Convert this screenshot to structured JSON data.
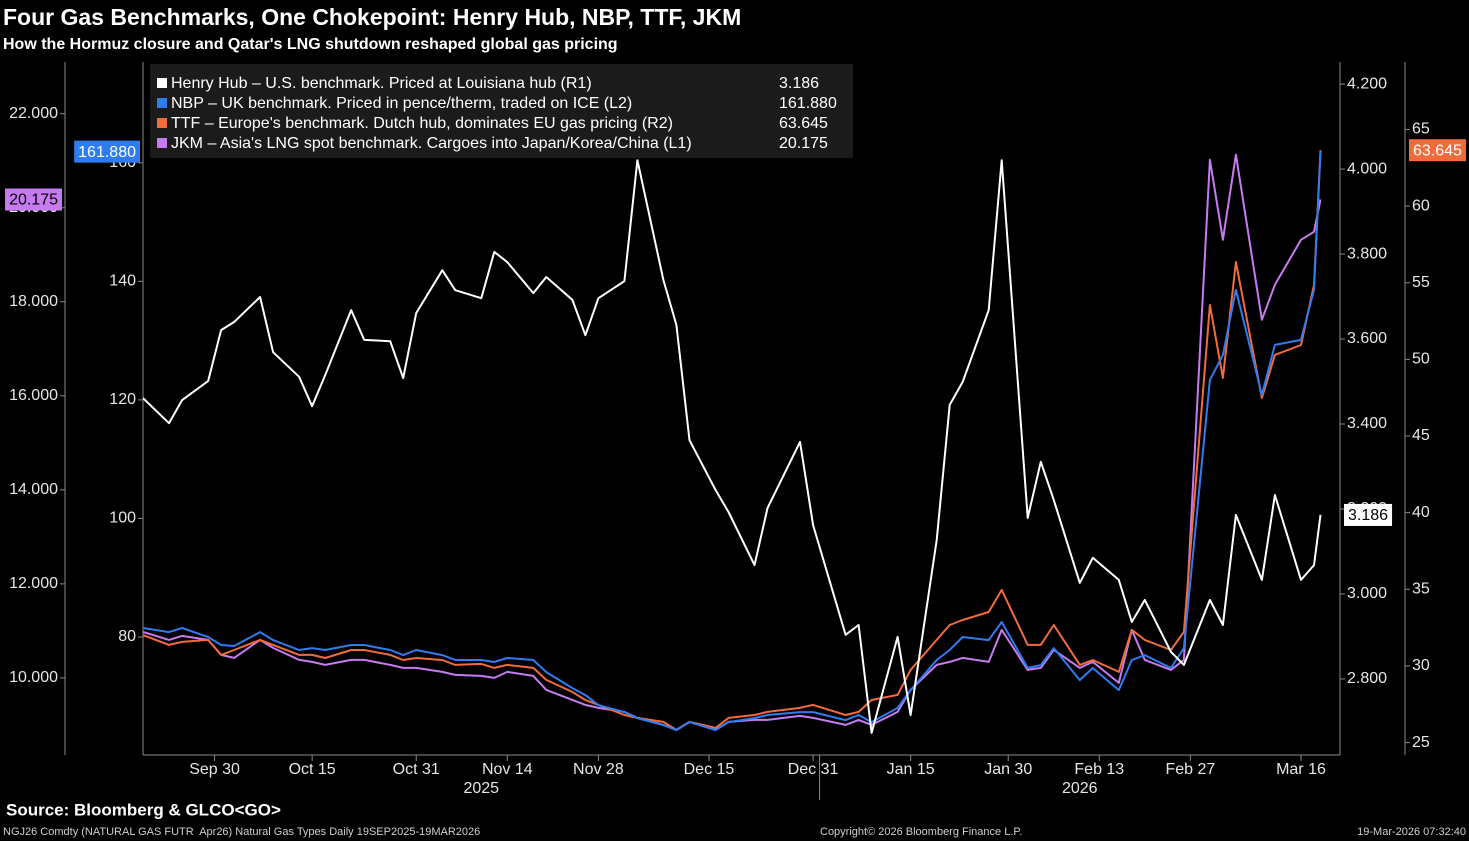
{
  "chart_data": {
    "type": "line",
    "title": "Four Gas Benchmarks, One Chokepoint: Henry Hub, NBP, TTF, JKM",
    "subtitle": "How the Hormuz closure and Qatar's LNG shutdown reshaped global gas pricing",
    "source": "Source: Bloomberg & GLCO<GO>",
    "footer_left": "NGJ26 Comdty (NATURAL GAS FUTR  Apr26) Natural Gas Types Daily 19SEP2025-19MAR2026",
    "footer_center": "Copyright© 2026 Bloomberg Finance L.P.",
    "footer_right": "19-Mar-2026 07:32:40",
    "legend": "upper left",
    "grid": false,
    "years": [
      "2025",
      "2026"
    ],
    "x": [
      "2025-09-19",
      "2025-09-23",
      "2025-09-25",
      "2025-09-29",
      "2025-10-01",
      "2025-10-03",
      "2025-10-07",
      "2025-10-09",
      "2025-10-13",
      "2025-10-15",
      "2025-10-17",
      "2025-10-21",
      "2025-10-23",
      "2025-10-27",
      "2025-10-29",
      "2025-10-31",
      "2025-11-04",
      "2025-11-06",
      "2025-11-10",
      "2025-11-12",
      "2025-11-14",
      "2025-11-18",
      "2025-11-20",
      "2025-11-24",
      "2025-11-26",
      "2025-11-28",
      "2025-12-02",
      "2025-12-04",
      "2025-12-08",
      "2025-12-10",
      "2025-12-12",
      "2025-12-16",
      "2025-12-18",
      "2025-12-22",
      "2025-12-24",
      "2025-12-29",
      "2025-12-31",
      "2026-01-05",
      "2026-01-07",
      "2026-01-09",
      "2026-01-13",
      "2026-01-15",
      "2026-01-19",
      "2026-01-21",
      "2026-01-23",
      "2026-01-27",
      "2026-01-29",
      "2026-02-02",
      "2026-02-04",
      "2026-02-06",
      "2026-02-10",
      "2026-02-12",
      "2026-02-16",
      "2026-02-18",
      "2026-02-20",
      "2026-02-24",
      "2026-02-26",
      "2026-03-02",
      "2026-03-04",
      "2026-03-06",
      "2026-03-10",
      "2026-03-12",
      "2026-03-16",
      "2026-03-18",
      "2026-03-19"
    ],
    "xlim": [
      "2025-09-19",
      "2026-03-22"
    ],
    "xticks": [
      {
        "value": "2025-09-30",
        "label": "Sep 30"
      },
      {
        "value": "2025-10-15",
        "label": "Oct 15"
      },
      {
        "value": "2025-10-31",
        "label": "Oct 31"
      },
      {
        "value": "2025-11-14",
        "label": "Nov 14"
      },
      {
        "value": "2025-11-28",
        "label": "Nov 28"
      },
      {
        "value": "2025-12-15",
        "label": "Dec 15"
      },
      {
        "value": "2025-12-31",
        "label": "Dec 31"
      },
      {
        "value": "2026-01-15",
        "label": "Jan 15"
      },
      {
        "value": "2026-01-30",
        "label": "Jan 30"
      },
      {
        "value": "2026-02-13",
        "label": "Feb 13"
      },
      {
        "value": "2026-02-27",
        "label": "Feb 27"
      },
      {
        "value": "2026-03-16",
        "label": "Mar 16"
      }
    ],
    "ylim": [
      8.36,
      23.1
    ],
    "yticks": [
      {
        "value": 10,
        "label": "10.000"
      },
      {
        "value": 12,
        "label": "12.000"
      },
      {
        "value": 14,
        "label": "14.000"
      },
      {
        "value": 16,
        "label": "16.000"
      },
      {
        "value": 18,
        "label": "18.000"
      },
      {
        "value": 20,
        "label": "20.000"
      },
      {
        "value": 22,
        "label": "22.000"
      }
    ],
    "y3lim": [
      60.1,
      177.0
    ],
    "y3ticks": [
      80,
      100,
      120,
      140,
      160
    ],
    "y2lim": [
      2.621,
      4.252
    ],
    "y2ticks": [
      {
        "value": 2.8,
        "label": "2.800"
      },
      {
        "value": 3,
        "label": "3.000"
      },
      {
        "value": 3.2,
        "label": "3.200"
      },
      {
        "value": 3.4,
        "label": "3.400"
      },
      {
        "value": 3.6,
        "label": "3.600"
      },
      {
        "value": 3.8,
        "label": "3.800"
      },
      {
        "value": 4,
        "label": "4.000"
      },
      {
        "value": 4.2,
        "label": "4.200"
      }
    ],
    "y4lim": [
      24.19,
      69.4
    ],
    "y4ticks": [
      25,
      30,
      35,
      40,
      45,
      50,
      55,
      60,
      65
    ],
    "series": [
      {
        "name": "Henry Hub – U.S. benchmark. Priced at Louisiana hub (R1)",
        "color": "#ffffff",
        "axis": "y2",
        "values": [
          3.461,
          3.402,
          3.456,
          3.501,
          3.621,
          3.64,
          3.699,
          3.569,
          3.511,
          3.442,
          3.515,
          3.668,
          3.598,
          3.595,
          3.508,
          3.661,
          3.762,
          3.715,
          3.696,
          3.805,
          3.781,
          3.708,
          3.746,
          3.692,
          3.609,
          3.696,
          3.736,
          4.021,
          3.739,
          3.633,
          3.362,
          3.245,
          3.193,
          3.068,
          3.202,
          3.358,
          3.162,
          2.904,
          2.927,
          2.673,
          2.899,
          2.715,
          3.127,
          3.445,
          3.499,
          3.668,
          4.021,
          3.179,
          3.311,
          3.221,
          3.026,
          3.085,
          3.033,
          2.934,
          2.986,
          2.864,
          2.833,
          2.986,
          2.927,
          3.186,
          3.033,
          3.233,
          3.033,
          3.068,
          3.186
        ]
      },
      {
        "name": "NBP – UK benchmark. Priced in pence/therm, traded on ICE (L2)",
        "color": "#2f7cf0",
        "axis": "y3",
        "values": [
          81.52,
          80.84,
          81.52,
          80.0,
          78.65,
          78.48,
          80.84,
          79.49,
          77.81,
          78.14,
          77.81,
          78.65,
          78.65,
          77.81,
          76.96,
          77.81,
          76.96,
          76.12,
          76.12,
          75.78,
          76.46,
          76.12,
          74.09,
          71.39,
          70.21,
          68.52,
          67.34,
          66.33,
          65.15,
          64.3,
          65.65,
          64.3,
          65.65,
          66.33,
          66.84,
          67.34,
          67.34,
          65.99,
          66.84,
          65.65,
          68.02,
          71.05,
          76.12,
          77.81,
          80.0,
          79.49,
          82.53,
          74.77,
          75.27,
          78.14,
          72.74,
          74.77,
          71.05,
          76.12,
          76.96,
          74.77,
          78.14,
          123.38,
          127.59,
          138.57,
          120.84,
          129.28,
          130.13,
          138.57,
          161.88
        ],
        "value_labels": [
          null,
          null,
          null,
          null,
          null,
          null,
          null,
          null,
          null,
          null,
          null,
          null,
          null,
          null,
          null,
          null,
          null,
          null,
          null,
          null,
          null,
          null,
          null,
          null,
          null,
          null,
          null,
          null,
          null,
          null,
          null,
          null,
          null,
          null,
          null,
          null,
          null,
          null,
          null,
          null,
          null,
          null,
          null,
          null,
          null,
          null,
          null,
          null,
          null,
          null,
          null,
          null,
          null,
          null,
          null,
          null,
          null,
          null,
          null,
          null,
          null,
          null,
          null,
          null,
          "161.880"
        ]
      },
      {
        "name": "TTF – Europe's benchmark. Dutch hub, dominates EU gas pricing (R2)",
        "color": "#f26b3a",
        "axis": "y4",
        "values": [
          32.02,
          31.37,
          31.57,
          31.7,
          30.72,
          31.04,
          31.7,
          31.37,
          30.72,
          30.72,
          30.52,
          31.04,
          31.04,
          30.72,
          30.39,
          30.52,
          30.39,
          30.07,
          30.13,
          29.87,
          30.07,
          29.87,
          29.09,
          28.3,
          27.78,
          27.46,
          26.8,
          26.61,
          26.35,
          25.83,
          26.35,
          25.96,
          26.61,
          26.8,
          27.0,
          27.26,
          27.46,
          26.8,
          27.0,
          27.78,
          28.11,
          29.74,
          31.7,
          32.67,
          33.0,
          33.52,
          34.96,
          31.37,
          31.37,
          32.67,
          30.07,
          30.39,
          29.61,
          32.35,
          31.7,
          31.04,
          32.22,
          53.55,
          48.79,
          56.35,
          47.48,
          50.29,
          50.94,
          54.85,
          63.645
        ]
      },
      {
        "name": "JKM – Asia's LNG spot benchmark. Cargoes into Japan/Korea/China (L1)",
        "color": "#c67cf0",
        "axis": "y",
        "values": [
          10.979,
          10.809,
          10.894,
          10.809,
          10.489,
          10.426,
          10.809,
          10.638,
          10.383,
          10.34,
          10.277,
          10.383,
          10.383,
          10.277,
          10.213,
          10.213,
          10.128,
          10.064,
          10.043,
          10.0,
          10.128,
          10.043,
          9.745,
          9.532,
          9.426,
          9.362,
          9.277,
          9.149,
          9.0,
          8.894,
          9.064,
          8.894,
          9.064,
          9.106,
          9.106,
          9.191,
          9.149,
          9.0,
          9.106,
          9.0,
          9.277,
          9.745,
          10.277,
          10.34,
          10.426,
          10.34,
          11.021,
          10.17,
          10.213,
          10.596,
          10.213,
          10.34,
          9.894,
          11.021,
          10.383,
          10.17,
          10.383,
          21.021,
          19.319,
          21.128,
          17.617,
          18.362,
          19.319,
          19.489,
          20.175
        ]
      }
    ]
  }
}
